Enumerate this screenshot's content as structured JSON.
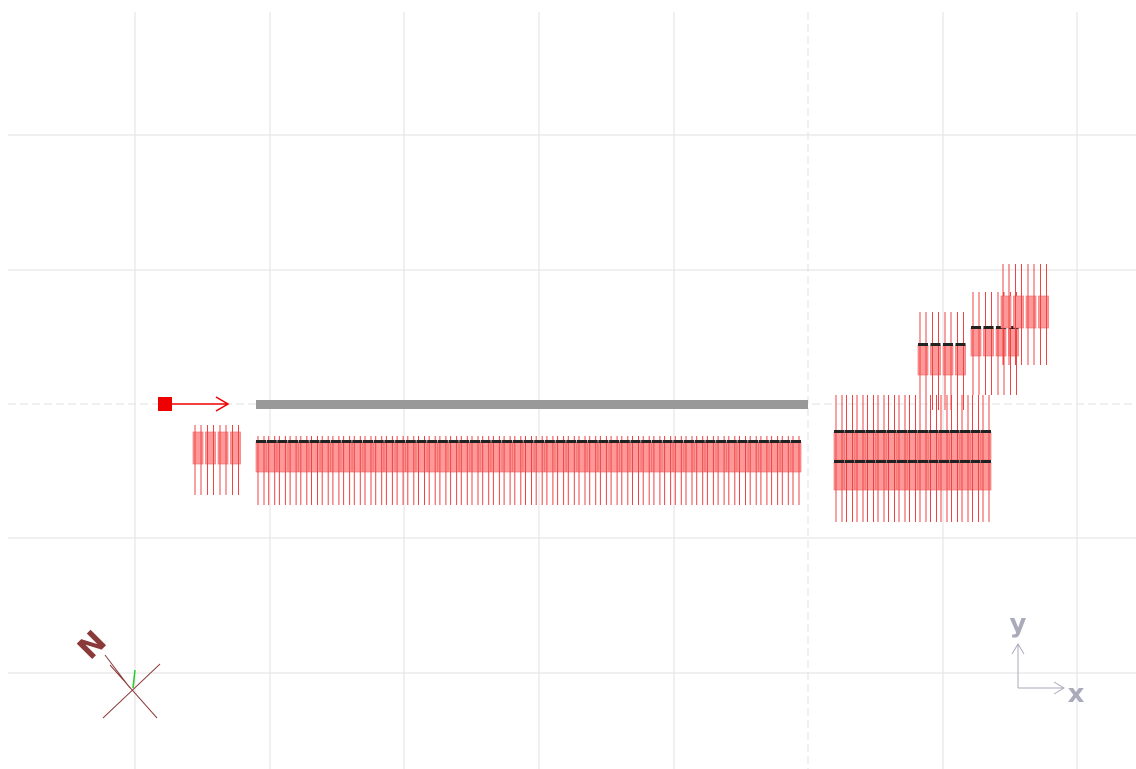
{
  "compass": {
    "label": "N"
  },
  "axes": {
    "y_label": "y",
    "x_label": "x"
  }
}
